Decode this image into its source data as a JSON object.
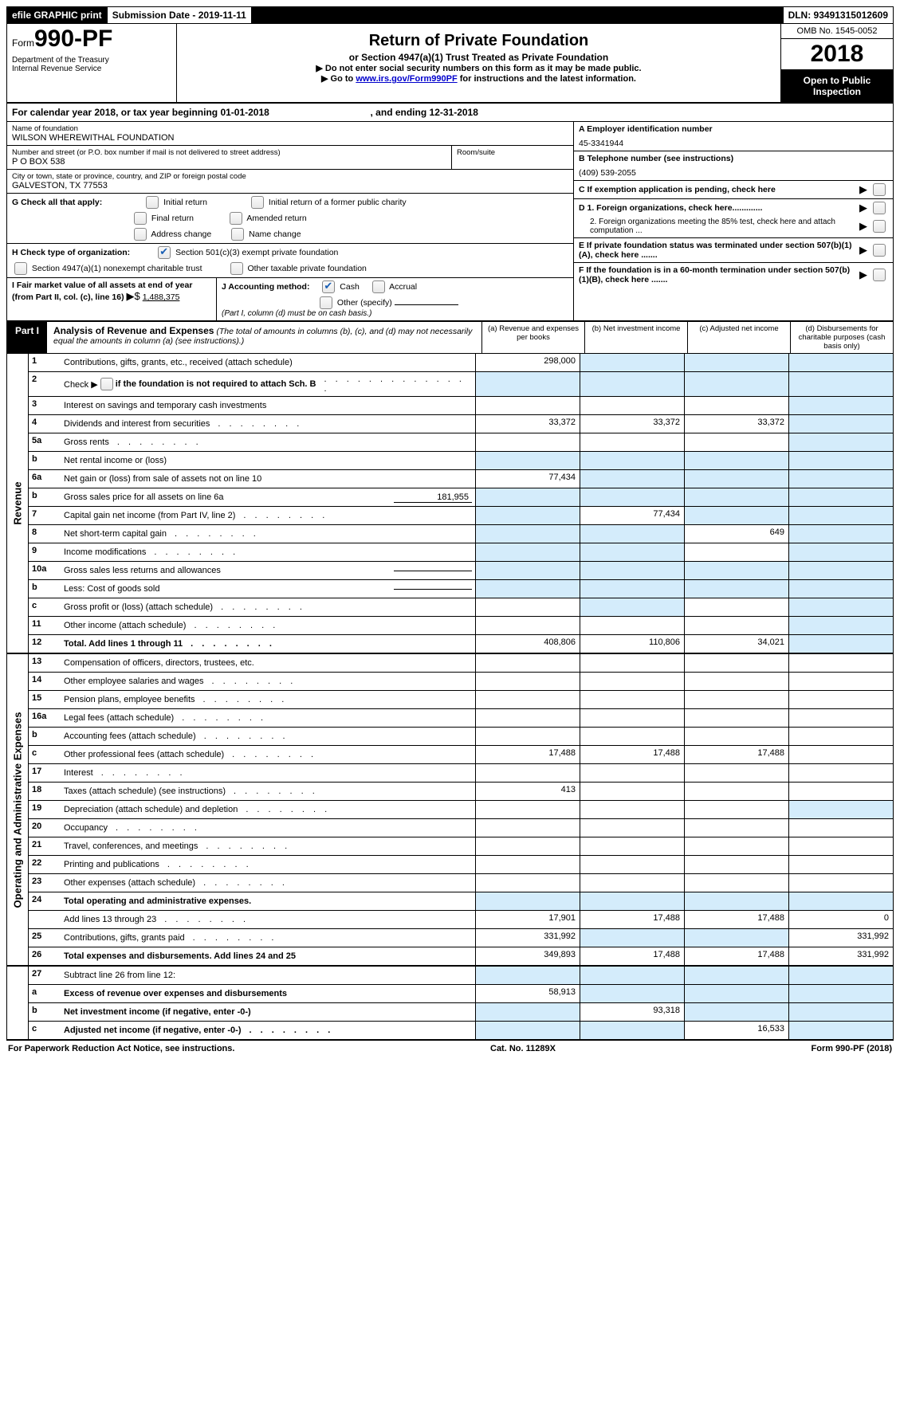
{
  "topbar": {
    "efile": "efile GRAPHIC print",
    "submission_label": "Submission Date - 2019-11-11",
    "dln_label": "DLN: 93491315012609"
  },
  "header": {
    "form_word": "Form",
    "form_num": "990-PF",
    "dept1": "Department of the Treasury",
    "dept2": "Internal Revenue Service",
    "title": "Return of Private Foundation",
    "subtitle": "or Section 4947(a)(1) Trust Treated as Private Foundation",
    "note1": "▶ Do not enter social security numbers on this form as it may be made public.",
    "note2_pre": "▶ Go to ",
    "note2_link": "www.irs.gov/Form990PF",
    "note2_post": " for instructions and the latest information.",
    "omb": "OMB No. 1545-0052",
    "year": "2018",
    "open": "Open to Public Inspection"
  },
  "calyear": {
    "text_a": "For calendar year 2018, or tax year beginning 01-01-2018",
    "text_b": ", and ending 12-31-2018"
  },
  "entity": {
    "name_label": "Name of foundation",
    "name": "WILSON WHEREWITHAL FOUNDATION",
    "addr_label": "Number and street (or P.O. box number if mail is not delivered to street address)",
    "addr": "P O BOX 538",
    "room_label": "Room/suite",
    "city_label": "City or town, state or province, country, and ZIP or foreign postal code",
    "city": "GALVESTON, TX  77553"
  },
  "right": {
    "a_label": "A Employer identification number",
    "a_val": "45-3341944",
    "b_label": "B Telephone number (see instructions)",
    "b_val": "(409) 539-2055",
    "c_label": "C  If exemption application is pending, check here",
    "d1": "D 1. Foreign organizations, check here.............",
    "d2": "2. Foreign organizations meeting the 85% test, check here and attach computation ...",
    "e": "E   If private foundation status was terminated under section 507(b)(1)(A), check here .......",
    "f": "F   If the foundation is in a 60-month termination under section 507(b)(1)(B), check here ......."
  },
  "g": {
    "label": "G Check all that apply:",
    "o1": "Initial return",
    "o2": "Initial return of a former public charity",
    "o3": "Final return",
    "o4": "Amended return",
    "o5": "Address change",
    "o6": "Name change"
  },
  "h": {
    "label": "H Check type of organization:",
    "o1": "Section 501(c)(3) exempt private foundation",
    "o2": "Section 4947(a)(1) nonexempt charitable trust",
    "o3": "Other taxable private foundation"
  },
  "i": {
    "label": "I Fair market value of all assets at end of year (from Part II, col. (c), line 16)",
    "arrow": "▶$",
    "val": "1,488,375"
  },
  "j": {
    "label": "J Accounting method:",
    "o1": "Cash",
    "o2": "Accrual",
    "o3": "Other (specify)",
    "note": "(Part I, column (d) must be on cash basis.)"
  },
  "part1": {
    "label": "Part I",
    "title": "Analysis of Revenue and Expenses",
    "note": "(The total of amounts in columns (b), (c), and (d) may not necessarily equal the amounts in column (a) (see instructions).)",
    "col_a": "(a)    Revenue and expenses per books",
    "col_b": "(b)    Net investment income",
    "col_c": "(c)    Adjusted net income",
    "col_d": "(d)    Disbursements for charitable purposes (cash basis only)"
  },
  "sidelabels": {
    "revenue": "Revenue",
    "expenses": "Operating and Administrative Expenses"
  },
  "rows": {
    "r1": {
      "n": "1",
      "d": "Contributions, gifts, grants, etc., received (attach schedule)",
      "a": "298,000"
    },
    "r2": {
      "n": "2",
      "d": "Check ▶",
      "d2": " if the foundation is not required to attach Sch. B"
    },
    "r3": {
      "n": "3",
      "d": "Interest on savings and temporary cash investments"
    },
    "r4": {
      "n": "4",
      "d": "Dividends and interest from securities",
      "a": "33,372",
      "b": "33,372",
      "c": "33,372"
    },
    "r5a": {
      "n": "5a",
      "d": "Gross rents"
    },
    "r5b": {
      "n": "b",
      "d": "Net rental income or (loss)"
    },
    "r6a": {
      "n": "6a",
      "d": "Net gain or (loss) from sale of assets not on line 10",
      "a": "77,434"
    },
    "r6b": {
      "n": "b",
      "d": "Gross sales price for all assets on line 6a",
      "v": "181,955"
    },
    "r7": {
      "n": "7",
      "d": "Capital gain net income (from Part IV, line 2)",
      "b": "77,434"
    },
    "r8": {
      "n": "8",
      "d": "Net short-term capital gain",
      "c": "649"
    },
    "r9": {
      "n": "9",
      "d": "Income modifications"
    },
    "r10a": {
      "n": "10a",
      "d": "Gross sales less returns and allowances"
    },
    "r10b": {
      "n": "b",
      "d": "Less: Cost of goods sold"
    },
    "r10c": {
      "n": "c",
      "d": "Gross profit or (loss) (attach schedule)"
    },
    "r11": {
      "n": "11",
      "d": "Other income (attach schedule)"
    },
    "r12": {
      "n": "12",
      "d": "Total. Add lines 1 through 11",
      "a": "408,806",
      "b": "110,806",
      "c": "34,021"
    },
    "r13": {
      "n": "13",
      "d": "Compensation of officers, directors, trustees, etc."
    },
    "r14": {
      "n": "14",
      "d": "Other employee salaries and wages"
    },
    "r15": {
      "n": "15",
      "d": "Pension plans, employee benefits"
    },
    "r16a": {
      "n": "16a",
      "d": "Legal fees (attach schedule)"
    },
    "r16b": {
      "n": "b",
      "d": "Accounting fees (attach schedule)"
    },
    "r16c": {
      "n": "c",
      "d": "Other professional fees (attach schedule)",
      "a": "17,488",
      "b": "17,488",
      "c": "17,488"
    },
    "r17": {
      "n": "17",
      "d": "Interest"
    },
    "r18": {
      "n": "18",
      "d": "Taxes (attach schedule) (see instructions)",
      "a": "413"
    },
    "r19": {
      "n": "19",
      "d": "Depreciation (attach schedule) and depletion"
    },
    "r20": {
      "n": "20",
      "d": "Occupancy"
    },
    "r21": {
      "n": "21",
      "d": "Travel, conferences, and meetings"
    },
    "r22": {
      "n": "22",
      "d": "Printing and publications"
    },
    "r23": {
      "n": "23",
      "d": "Other expenses (attach schedule)"
    },
    "r24": {
      "n": "24",
      "d": "Total operating and administrative expenses."
    },
    "r24b": {
      "n": "",
      "d": "Add lines 13 through 23",
      "a": "17,901",
      "b": "17,488",
      "c": "17,488",
      "dd": "0"
    },
    "r25": {
      "n": "25",
      "d": "Contributions, gifts, grants paid",
      "a": "331,992",
      "dd": "331,992"
    },
    "r26": {
      "n": "26",
      "d": "Total expenses and disbursements. Add lines 24 and 25",
      "a": "349,893",
      "b": "17,488",
      "c": "17,488",
      "dd": "331,992"
    },
    "r27": {
      "n": "27",
      "d": "Subtract line 26 from line 12:"
    },
    "r27a": {
      "n": "a",
      "d": "Excess of revenue over expenses and disbursements",
      "a": "58,913"
    },
    "r27b": {
      "n": "b",
      "d": "Net investment income (if negative, enter -0-)",
      "b": "93,318"
    },
    "r27c": {
      "n": "c",
      "d": "Adjusted net income (if negative, enter -0-)",
      "c": "16,533"
    }
  },
  "footer": {
    "left": "For Paperwork Reduction Act Notice, see instructions.",
    "mid": "Cat. No. 11289X",
    "right": "Form 990-PF (2018)"
  }
}
